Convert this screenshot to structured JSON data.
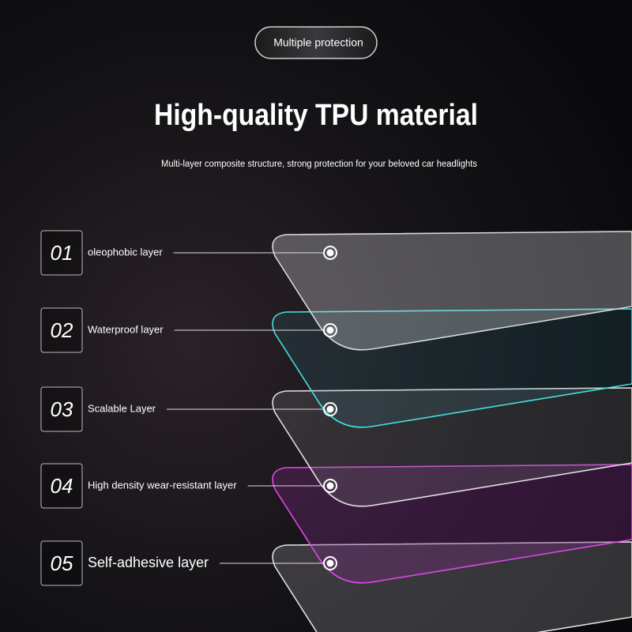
{
  "badge": "Multiple protection",
  "title": "High-quality TPU material",
  "subtitle": "Multi-layer composite structure, strong protection for your beloved car headlights",
  "layers": [
    {
      "number": "01",
      "label": "oleophobic layer"
    },
    {
      "number": "02",
      "label": "Waterproof layer"
    },
    {
      "number": "03",
      "label": "Scalable Layer"
    },
    {
      "number": "04",
      "label": "High density wear-resistant layer"
    },
    {
      "number": "05",
      "label": "Self-adhesive layer"
    }
  ]
}
